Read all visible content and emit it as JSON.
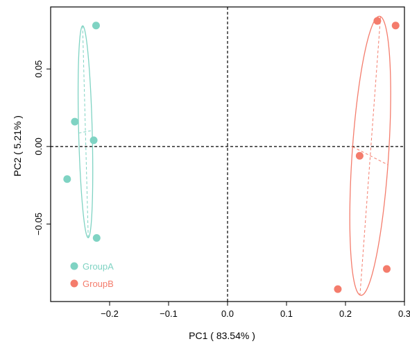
{
  "chart_data": {
    "type": "scatter",
    "title": "",
    "xlabel": "PC1 ( 83.54% )",
    "ylabel": "PC2 ( 5.21% )",
    "xlim": [
      -0.3,
      0.3
    ],
    "ylim": [
      -0.1,
      0.09
    ],
    "xticks": [
      -0.2,
      -0.1,
      0.0,
      0.1,
      0.2,
      0.3
    ],
    "xtick_labels": [
      "−0.2",
      "−0.1",
      "0.0",
      "0.1",
      "0.2",
      "0.3"
    ],
    "yticks": [
      -0.05,
      0.0,
      0.05
    ],
    "ytick_labels": [
      "−0.05",
      "0.00",
      "0.05"
    ],
    "grid": false,
    "reference_lines": {
      "x": 0,
      "y": 0,
      "style": "dashed"
    },
    "legend_position": "bottom-left",
    "series": [
      {
        "name": "GroupA",
        "color": "#7fd3c3",
        "points": [
          {
            "x": -0.223,
            "y": 0.078
          },
          {
            "x": -0.259,
            "y": 0.016
          },
          {
            "x": -0.227,
            "y": 0.004
          },
          {
            "x": -0.272,
            "y": -0.021
          },
          {
            "x": -0.222,
            "y": -0.059
          }
        ],
        "ellipse": {
          "cx": -0.241,
          "cy": 0.0095,
          "semi_major": 0.0685,
          "semi_minor": 0.0115,
          "angle_deg": 94
        }
      },
      {
        "name": "GroupB",
        "color": "#f47c6c",
        "points": [
          {
            "x": 0.254,
            "y": 0.081
          },
          {
            "x": 0.285,
            "y": 0.078
          },
          {
            "x": 0.224,
            "y": -0.006
          },
          {
            "x": 0.27,
            "y": -0.079
          },
          {
            "x": 0.187,
            "y": -0.092
          }
        ],
        "ellipse": {
          "cx": 0.242,
          "cy": -0.006,
          "semi_major": 0.0915,
          "semi_minor": 0.0305,
          "angle_deg": 79
        }
      }
    ]
  }
}
